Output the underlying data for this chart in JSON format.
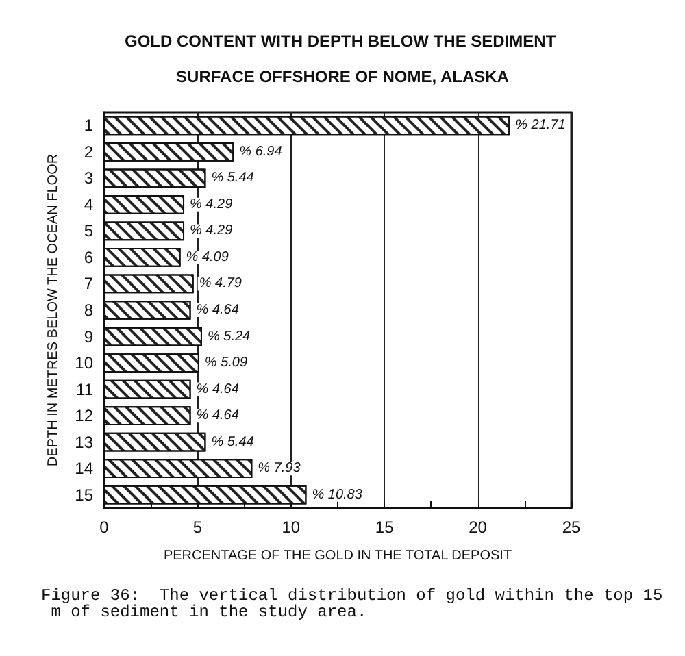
{
  "chart_data": {
    "type": "bar",
    "orientation": "horizontal",
    "title": "GOLD CONTENT WITH DEPTH BELOW THE SEDIMENT SURFACE OFFSHORE OF NOME, ALASKA",
    "xlabel": "PERCENTAGE OF THE GOLD IN THE TOTAL DEPOSIT",
    "ylabel": "DEPTH IN METRES BELOW THE OCEAN FLOOR",
    "categories": [
      "1",
      "2",
      "3",
      "4",
      "5",
      "6",
      "7",
      "8",
      "9",
      "10",
      "11",
      "12",
      "13",
      "14",
      "15"
    ],
    "values": [
      21.71,
      6.94,
      5.44,
      4.29,
      4.29,
      4.09,
      4.79,
      4.64,
      5.24,
      5.09,
      4.64,
      4.64,
      5.44,
      7.93,
      10.83
    ],
    "value_labels": [
      "% 21.71",
      "% 6.94",
      "% 5.44",
      "% 4.29",
      "% 4.29",
      "% 4.09",
      "% 4.79",
      "% 4.64",
      "% 5.24",
      "% 5.09",
      "% 4.64",
      "% 4.64",
      "% 5.44",
      "% 7.93",
      "% 10.83"
    ],
    "color": "#ffffff",
    "xlim": [
      0,
      25
    ],
    "xticks": [
      0,
      {
        "value": 2.5,
        "label": null
      },
      5,
      {
        "value": 7.5,
        "label": null
      },
      10,
      {
        "value": 12.5,
        "label": null
      },
      15,
      {
        "value": 17.5,
        "label": null
      },
      20,
      {
        "value": 22.5,
        "label": null
      },
      25
    ],
    "grid": "x",
    "annotations": [
      "Figure 36:  The vertical distribution of gold within the top 15 m of sediment in the study area."
    ]
  }
}
